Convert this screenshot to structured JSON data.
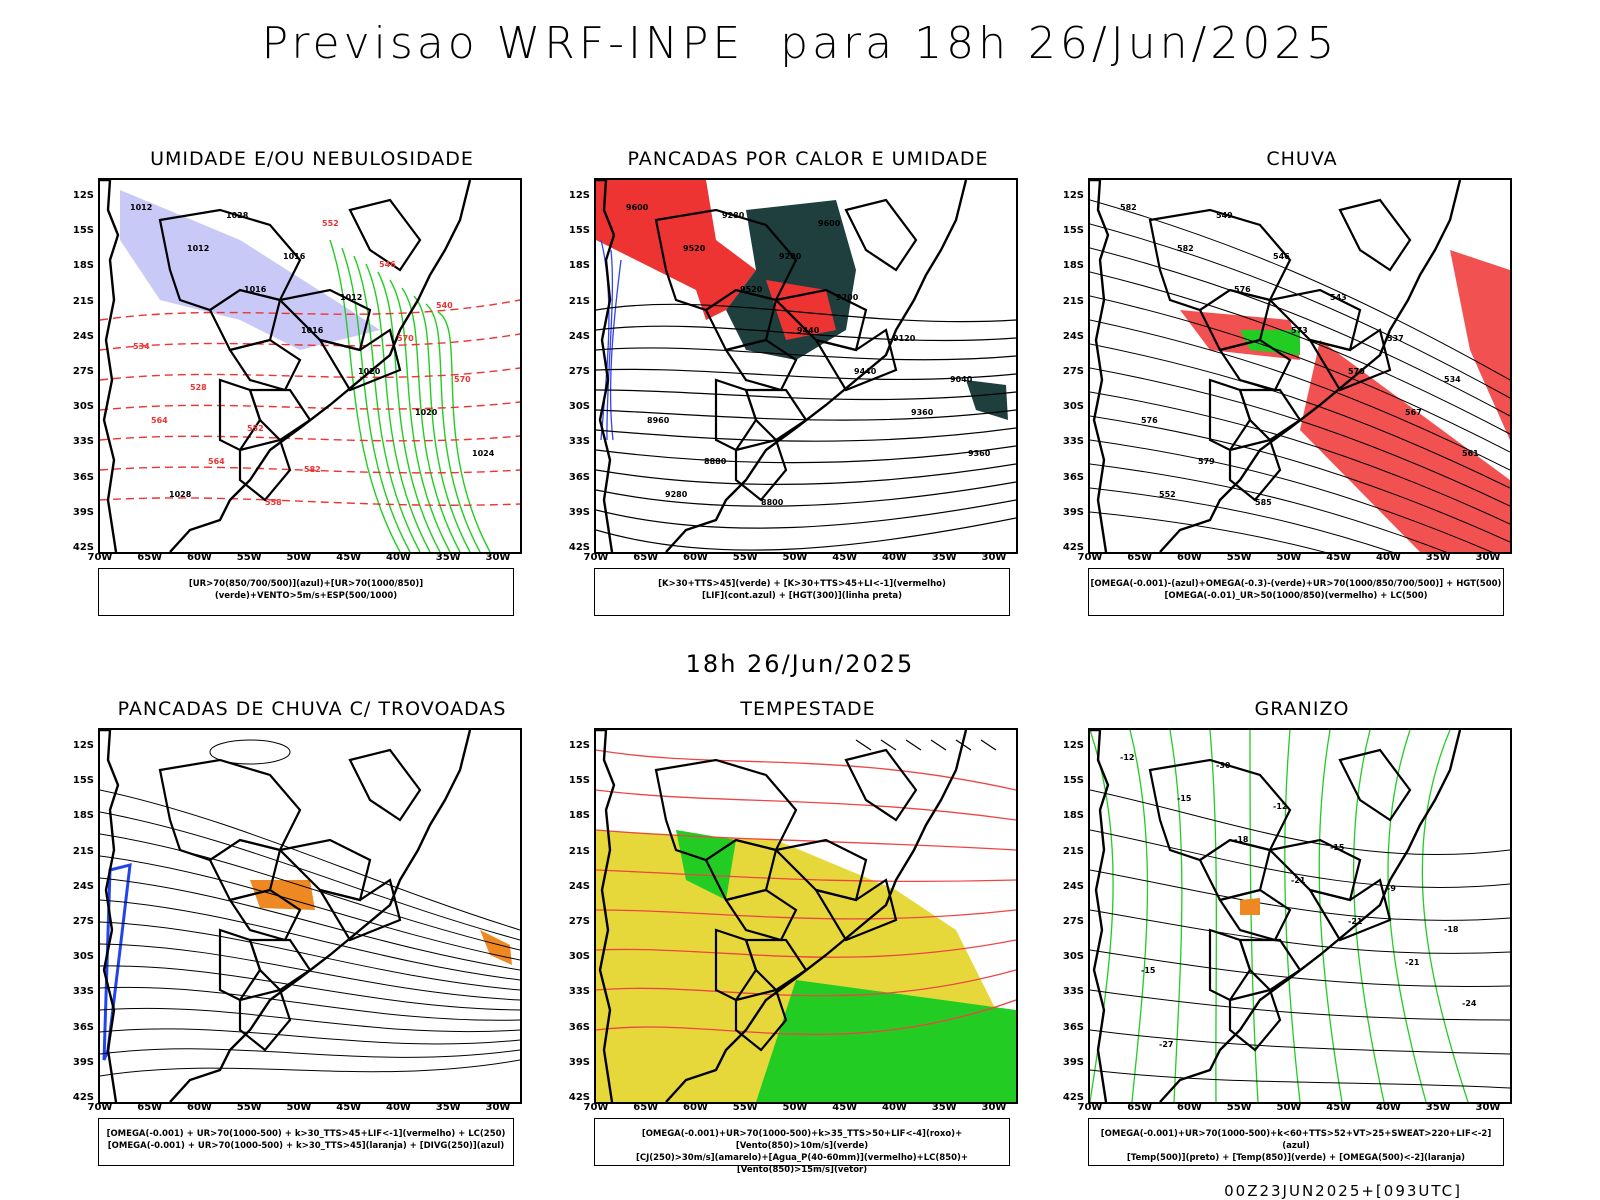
{
  "title": "Previsao WRF-INPE  para 18h 26/Jun/2025",
  "mid_title": "18h 26/Jun/2025",
  "footer": "00Z23JUN2025+[093UTC]",
  "y_ticks": [
    "12S",
    "15S",
    "18S",
    "21S",
    "24S",
    "27S",
    "30S",
    "33S",
    "36S",
    "39S",
    "42S"
  ],
  "x_ticks": [
    "70W",
    "65W",
    "60W",
    "55W",
    "50W",
    "45W",
    "40W",
    "35W",
    "30W"
  ],
  "panels": [
    {
      "title": "UMIDADE E/OU NEBULOSIDADE",
      "legend": [
        "[UR>70(850/700/500)](azul)+[UR>70(1000/850)](verde)+VENTO>5m/s+ESP(500/1000)"
      ],
      "labels": [
        "1012",
        "1012",
        "1016",
        "1016",
        "1020",
        "1020",
        "1024",
        "1028",
        "1028",
        "1016",
        "1012",
        "570",
        "570",
        "564",
        "564",
        "558",
        "552",
        "546",
        "540",
        "534",
        "528",
        "552",
        "582"
      ],
      "colors": {
        "blue": "#8888ee",
        "green": "#22cc22",
        "red": "#ee3333"
      }
    },
    {
      "title": "PANCADAS POR CALOR E UMIDADE",
      "legend": [
        "[K>30+TTS>45](verde) + [K>30+TTS>45+LI<-1](vermelho)",
        "[LIF](cont.azul) + [HGT(300)](linha preta)"
      ],
      "labels": [
        "9600",
        "9520",
        "9520",
        "9440",
        "9440",
        "9360",
        "9360",
        "9280",
        "9280",
        "9200",
        "9200",
        "9120",
        "9040",
        "8960",
        "8880",
        "8800",
        "9600"
      ],
      "colors": {
        "red": "#ee3333",
        "teal": "#1f3f3f",
        "blue": "#3344ee"
      }
    },
    {
      "title": "CHUVA",
      "legend": [
        "[OMEGA(-0.001)-(azul)+OMEGA(-0.3)-(verde)+UR>70(1000/850/700/500)] + HGT(500)",
        "[OMEGA(-0.01)_UR>50(1000/850)(vermelho) + LC(500)"
      ],
      "labels": [
        "582",
        "582",
        "576",
        "573",
        "570",
        "567",
        "561",
        "552",
        "549",
        "546",
        "543",
        "537",
        "534",
        "576",
        "579",
        "585"
      ],
      "colors": {
        "red": "#ee3333",
        "green": "#22cc22",
        "blue": "#2233ee"
      }
    },
    {
      "title": "PANCADAS DE CHUVA C/ TROVOADAS",
      "legend": [
        "[OMEGA(-0.001) + UR>70(1000-500) + k>30_TTS>45+LIF<-1](vermelho) + LC(250)",
        "[OMEGA(-0.001) + UR>70(1000-500) + k>30_TTS>45](laranja) + [DIVG(250)](azul)"
      ],
      "labels": [],
      "colors": {
        "orange": "#ee8822",
        "blue": "#2244ee",
        "red": "#ee3333"
      }
    },
    {
      "title": "TEMPESTADE",
      "legend": [
        "[OMEGA(-0.001)+UR>70(1000-500)+k>35_TTS>50+LIF<-4](roxo)+[Vento(850)>10m/s](verde)",
        "[CJ(250)>30m/s](amarelo)+[Agua_P(40-60mm)](vermelho)+LC(850)+[Vento(850)>15m/s](vetor)"
      ],
      "labels": [],
      "colors": {
        "yellow": "#e6d83a",
        "green": "#22cc22",
        "red": "#ee4444"
      }
    },
    {
      "title": "GRANIZO",
      "legend": [
        "[OMEGA(-0.001)+UR>70(1000-500)+k<60+TTS>52+VT>25+SWEAT>220+LIF<-2](azul)",
        "[Temp(500)](preto) + [Temp(850)](verde) + [OMEGA(500)<-2](laranja)"
      ],
      "labels": [
        "-12",
        "-15",
        "-18",
        "-21",
        "-21",
        "-21",
        "-24",
        "-27",
        "-30",
        "-12",
        "-15",
        "-9",
        "-18",
        "-15"
      ],
      "colors": {
        "green": "#22cc22",
        "orange": "#ee8822"
      }
    }
  ]
}
